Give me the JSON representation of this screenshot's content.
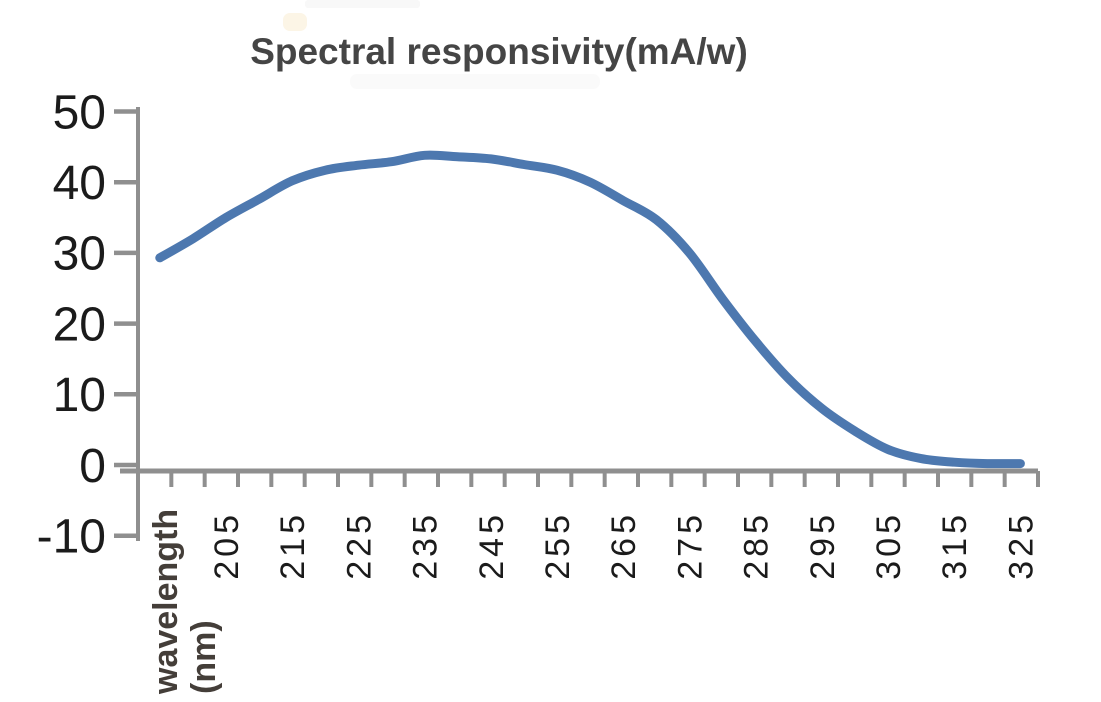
{
  "page": {
    "background": "#ffffff"
  },
  "chart_data": {
    "type": "line",
    "title": "Spectral responsivity(mA/w)",
    "grid": "off",
    "legend": "none",
    "x_axis": {
      "axis_label_lines": [
        "wavelength",
        "(nm)"
      ],
      "tick_labels": [
        "205",
        "215",
        "225",
        "235",
        "245",
        "255",
        "265",
        "275",
        "285",
        "295",
        "305",
        "315",
        "325"
      ],
      "tick_values_nm": [
        205,
        215,
        225,
        235,
        245,
        255,
        265,
        275,
        285,
        295,
        305,
        315,
        325
      ],
      "minor_tick_step_nm": 5,
      "labels_rotated_degrees": -90
    },
    "y_axis": {
      "tick_labels": [
        "50",
        "40",
        "30",
        "20",
        "10",
        "0",
        "-10"
      ],
      "tick_values": [
        50,
        40,
        30,
        20,
        10,
        0,
        -10
      ],
      "range": [
        -10,
        50
      ]
    },
    "series": [
      {
        "name": "spectral-responsivity",
        "color": "#4d78af",
        "x_nm": [
          195,
          200,
          205,
          210,
          215,
          220,
          225,
          230,
          235,
          240,
          245,
          250,
          255,
          260,
          265,
          270,
          275,
          280,
          285,
          290,
          295,
          300,
          305,
          310,
          315,
          320,
          325
        ],
        "values": [
          29.3,
          32.0,
          35.0,
          37.6,
          40.2,
          41.7,
          42.4,
          42.9,
          43.8,
          43.6,
          43.3,
          42.5,
          41.7,
          40.0,
          37.4,
          34.7,
          30.0,
          23.5,
          17.5,
          12.2,
          8.0,
          4.8,
          2.2,
          0.9,
          0.4,
          0.2,
          0.2
        ]
      }
    ],
    "colors": {
      "axis": "#8f8f8f",
      "tick_label": "#1b1b1b",
      "title": "#454545",
      "axis_label": "#443e39"
    }
  }
}
